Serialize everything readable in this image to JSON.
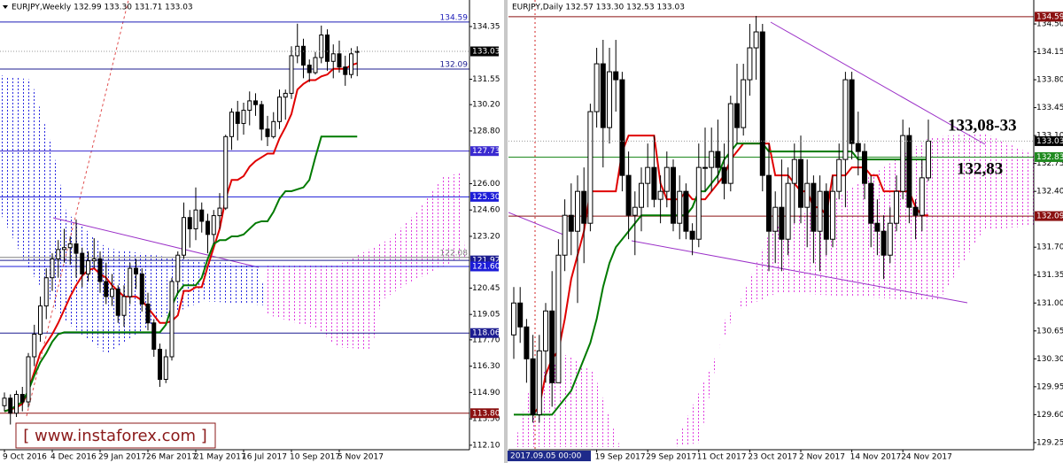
{
  "chart_data": [
    {
      "type": "candlestick",
      "title": "EURJPY,Weekly 132.99 133.30 131.71 133.03",
      "categories": [
        "9 Oct 2016",
        null,
        null,
        null,
        null,
        null,
        null,
        null,
        "4 Dec 2016",
        null,
        null,
        null,
        null,
        null,
        null,
        null,
        "29 Jan 2017",
        null,
        null,
        null,
        null,
        null,
        null,
        null,
        "26 Mar 2017",
        null,
        null,
        null,
        null,
        null,
        null,
        null,
        "21 May 2017",
        null,
        null,
        null,
        null,
        null,
        null,
        null,
        "16 Jul 2017",
        null,
        null,
        null,
        null,
        null,
        null,
        null,
        "10 Sep 2017",
        null,
        null,
        null,
        null,
        null,
        null,
        null,
        "5 Nov 2017",
        null,
        null,
        null
      ],
      "open": [
        114.2,
        114.6,
        113.8,
        114.8,
        114.4,
        116.8,
        118.0,
        119.5,
        121.0,
        122.0,
        122.5,
        122.6,
        122.8,
        122.3,
        121.2,
        121.9,
        122.0,
        120.8,
        120.0,
        120.4,
        119.0,
        120.0,
        121.5,
        121.2,
        119.6,
        118.6,
        117.2,
        115.6,
        116.8,
        120.8,
        122.2,
        124.2,
        123.6,
        124.6,
        124.0,
        123.3,
        124.3,
        124.7,
        128.5,
        129.8,
        129.2,
        129.9,
        130.4,
        130.2,
        128.9,
        128.5,
        129.3,
        130.6,
        130.8,
        132.8,
        133.3,
        132.3,
        131.9,
        132.7,
        133.9,
        132.5,
        132.9,
        132.2,
        131.8,
        132.99
      ],
      "high": [
        114.9,
        114.8,
        115.0,
        115.2,
        117.0,
        118.5,
        120.0,
        121.5,
        122.3,
        123.0,
        123.6,
        123.2,
        124.1,
        122.6,
        122.4,
        123.1,
        122.4,
        121.8,
        121.2,
        120.6,
        120.6,
        121.8,
        122.0,
        121.5,
        120.2,
        118.8,
        117.5,
        117.2,
        121.0,
        122.4,
        125.0,
        124.6,
        125.8,
        125.0,
        124.4,
        124.6,
        125.5,
        128.6,
        130.0,
        130.4,
        130.3,
        130.9,
        130.8,
        130.4,
        129.6,
        129.8,
        131.0,
        131.0,
        133.3,
        134.5,
        133.7,
        132.6,
        133.0,
        134.4,
        134.2,
        133.4,
        133.6,
        132.8,
        133.2,
        133.3
      ],
      "low": [
        113.9,
        113.2,
        113.6,
        113.9,
        114.1,
        116.3,
        117.6,
        118.8,
        120.3,
        121.0,
        121.8,
        121.7,
        121.0,
        120.5,
        120.8,
        121.5,
        120.2,
        119.6,
        119.5,
        118.6,
        118.4,
        119.6,
        120.4,
        119.2,
        118.2,
        116.8,
        115.2,
        115.4,
        116.6,
        120.2,
        122.0,
        122.6,
        123.0,
        123.4,
        122.3,
        122.8,
        123.6,
        124.6,
        127.8,
        128.3,
        128.6,
        129.1,
        129.6,
        128.3,
        128.0,
        128.4,
        128.9,
        129.4,
        130.5,
        132.4,
        131.6,
        131.4,
        131.8,
        132.4,
        132.0,
        131.6,
        131.9,
        131.2,
        131.6,
        131.71
      ],
      "close": [
        114.6,
        113.8,
        114.8,
        114.4,
        116.8,
        118.0,
        119.5,
        121.0,
        122.0,
        122.5,
        122.6,
        122.8,
        122.3,
        121.2,
        121.9,
        122.0,
        120.8,
        120.0,
        120.4,
        119.0,
        120.0,
        121.5,
        121.2,
        119.6,
        118.6,
        117.2,
        115.6,
        116.8,
        120.8,
        122.2,
        124.2,
        123.6,
        124.6,
        124.0,
        123.3,
        124.3,
        124.7,
        128.5,
        129.8,
        129.2,
        129.9,
        130.4,
        130.2,
        128.9,
        128.5,
        129.3,
        130.6,
        130.8,
        132.8,
        133.3,
        132.3,
        131.9,
        132.7,
        133.9,
        132.5,
        132.9,
        132.2,
        131.8,
        132.9,
        133.03
      ],
      "lines": [
        {
          "color": "#e00000",
          "values": [
            113.9,
            114.0,
            114.1,
            114.3,
            115.0,
            116.0,
            117.0,
            117.5,
            118.0,
            118.6,
            119.3,
            120.0,
            120.6,
            121.1,
            121.4,
            121.5,
            121.2,
            121.0,
            120.6,
            120.3,
            120.0,
            120.0,
            120.0,
            119.8,
            119.4,
            119.0,
            118.6,
            118.6,
            118.7,
            119.0,
            120.3,
            120.3,
            120.5,
            120.5,
            121.6,
            122.6,
            123.6,
            125.2,
            126.2,
            126.2,
            126.4,
            126.9,
            127.2,
            127.4,
            127.6,
            127.6,
            128.4,
            129.0,
            129.7,
            131.0,
            131.3,
            131.5,
            131.5,
            131.7,
            131.8,
            132.1,
            132.1,
            132.1,
            132.3,
            132.4
          ]
        },
        {
          "color": "#007a00",
          "values": [
            113.9,
            114.0,
            114.2,
            114.4,
            115.0,
            115.8,
            116.5,
            117.0,
            117.6,
            118.0,
            118.1,
            118.1,
            118.1,
            118.1,
            118.1,
            118.1,
            118.1,
            118.1,
            118.1,
            118.1,
            118.1,
            118.1,
            118.1,
            118.1,
            118.1,
            118.1,
            118.1,
            118.5,
            119.5,
            120.2,
            120.6,
            120.6,
            120.6,
            121.0,
            122.0,
            122.8,
            123.0,
            123.0,
            123.2,
            123.2,
            123.3,
            123.6,
            123.9,
            124.0,
            124.0,
            124.5,
            125.2,
            125.6,
            125.6,
            125.7,
            125.8,
            126.2,
            127.4,
            128.5,
            128.5,
            128.5,
            128.5,
            128.5,
            128.5,
            128.5
          ]
        }
      ],
      "levels": [
        {
          "value": 134.59,
          "color": "#1c1cb8",
          "tag": false
        },
        {
          "value": 132.09,
          "color": "#1c1c90",
          "tag": false
        },
        {
          "value": 127.73,
          "color": "#3a2ad0",
          "tag": true
        },
        {
          "value": 125.3,
          "label": "125.30",
          "color": "#1c1cd8",
          "tag": true
        },
        {
          "value": 122.08,
          "color": "#808080",
          "tag": false
        },
        {
          "value": 121.92,
          "color": "#1c1c90",
          "tag": true
        },
        {
          "value": 121.6,
          "label": "121.60",
          "color": "#1c1cd8",
          "tag": true
        },
        {
          "value": 118.06,
          "color": "#1c1c90",
          "tag": true
        },
        {
          "value": 113.8,
          "label": "113.80",
          "color": "#8b1010",
          "tag": true
        }
      ],
      "ylim": [
        111.86,
        135.76
      ],
      "yticks": [
        134.35,
        131.55,
        {
          "value": 130.2,
          "label": "130.20"
        },
        {
          "value": 128.8,
          "label": "128.80"
        },
        {
          "value": 126,
          "label": "126.00"
        },
        {
          "value": 124.6,
          "label": "124.60"
        },
        {
          "value": 123.2,
          "label": "123.20"
        },
        120.45,
        119.05,
        {
          "value": 117.7,
          "label": "117.70"
        },
        {
          "value": 116.3,
          "label": "116.30"
        },
        {
          "value": 114.9,
          "label": "114.90"
        },
        {
          "value": 113.5,
          "label": "113.50"
        },
        {
          "value": 112.1,
          "label": "112.10"
        }
      ],
      "watermark": "[ www.instaforex.com ]"
    },
    {
      "type": "candlestick",
      "title": "EURJPY,Daily 132.57 133.30 132.53 133.03",
      "categories": [
        null,
        null,
        null,
        null,
        null,
        null,
        null,
        null,
        null,
        null,
        null,
        null,
        null,
        "19 Sep 2017",
        null,
        null,
        null,
        null,
        null,
        null,
        null,
        "29 Sep 2017",
        null,
        null,
        null,
        null,
        null,
        null,
        null,
        "11 Oct 2017",
        null,
        null,
        null,
        null,
        null,
        null,
        null,
        "23 Oct 2017",
        null,
        null,
        null,
        null,
        null,
        null,
        null,
        "2 Nov 2017",
        null,
        null,
        null,
        null,
        null,
        null,
        null,
        "14 Nov 2017",
        null,
        null,
        null,
        null,
        null,
        null,
        null,
        "24 Nov 2017",
        null,
        null,
        null,
        null
      ],
      "open": [
        130.6,
        131.0,
        130.7,
        130.3,
        129.6,
        130.4,
        130.9,
        130.0,
        131.6,
        132.1,
        131.9,
        132.4,
        132.0,
        133.4,
        134.0,
        133.2,
        133.9,
        133.8,
        132.6,
        132.1,
        132.2,
        132.5,
        132.7,
        132.3,
        132.4,
        132.7,
        132.0,
        132.4,
        131.9,
        131.8,
        132.7,
        132.7,
        132.9,
        132.7,
        132.5,
        133.5,
        133.2,
        133.8,
        134.2,
        134.4,
        132.6,
        131.9,
        132.2,
        131.8,
        132.5,
        132.8,
        132.2,
        132.5,
        131.9,
        132.4,
        131.8,
        132.4,
        132.8,
        133.8,
        133.0,
        132.9,
        132.5,
        132.0,
        131.9,
        131.6,
        132.0,
        132.4,
        133.1,
        132.2,
        132.1,
        132.57
      ],
      "high": [
        131.2,
        131.2,
        130.8,
        130.6,
        130.6,
        131.0,
        131.4,
        131.8,
        132.3,
        132.5,
        132.6,
        132.7,
        133.5,
        134.2,
        134.3,
        134.2,
        134.3,
        133.9,
        132.9,
        132.4,
        132.7,
        133.0,
        133.1,
        132.6,
        132.9,
        132.8,
        132.6,
        132.5,
        132.0,
        133.0,
        133.2,
        133.2,
        133.3,
        133.0,
        133.6,
        134.0,
        134.0,
        134.5,
        134.6,
        134.5,
        133.0,
        132.4,
        132.8,
        132.7,
        133.0,
        133.1,
        132.8,
        132.6,
        132.6,
        132.5,
        132.6,
        133.0,
        133.9,
        133.9,
        133.4,
        133.0,
        132.6,
        132.3,
        132.1,
        132.2,
        132.6,
        133.3,
        133.2,
        132.3,
        132.8,
        133.3
      ],
      "low": [
        130.3,
        130.5,
        130.0,
        129.5,
        129.5,
        130.0,
        129.7,
        130.0,
        131.4,
        131.6,
        131.0,
        131.5,
        131.9,
        133.2,
        132.7,
        133.0,
        133.4,
        132.4,
        131.8,
        131.6,
        131.9,
        132.2,
        132.2,
        132.0,
        132.2,
        131.9,
        131.8,
        131.8,
        131.6,
        131.7,
        132.4,
        132.4,
        132.5,
        132.3,
        132.4,
        133.0,
        133.1,
        133.6,
        133.8,
        132.4,
        131.4,
        131.5,
        131.4,
        131.6,
        132.0,
        132.0,
        131.7,
        131.5,
        131.4,
        131.6,
        131.7,
        132.3,
        132.2,
        132.8,
        132.6,
        132.3,
        131.7,
        131.6,
        131.3,
        131.5,
        131.9,
        132.3,
        132.0,
        131.8,
        131.9,
        132.53
      ],
      "close": [
        131.0,
        130.7,
        130.3,
        129.6,
        130.4,
        130.9,
        130.0,
        131.6,
        132.1,
        131.9,
        132.4,
        132.0,
        133.4,
        134.0,
        133.2,
        133.9,
        133.8,
        132.6,
        132.1,
        132.2,
        132.5,
        132.7,
        132.3,
        132.4,
        132.7,
        132.0,
        132.4,
        131.9,
        131.8,
        132.7,
        132.7,
        132.9,
        132.7,
        132.5,
        133.5,
        133.2,
        133.8,
        134.2,
        134.4,
        132.6,
        131.9,
        132.2,
        131.8,
        132.5,
        132.8,
        132.2,
        132.5,
        131.9,
        132.4,
        131.8,
        132.4,
        132.8,
        133.8,
        133.0,
        132.9,
        132.5,
        132.0,
        131.9,
        131.6,
        132.0,
        132.4,
        133.1,
        132.2,
        132.1,
        132.57,
        133.03
      ],
      "lines": [
        {
          "color": "#e00000",
          "values": [
            null,
            null,
            null,
            129.6,
            129.7,
            130.1,
            130.3,
            130.4,
            130.8,
            131.3,
            131.6,
            131.9,
            132.4,
            132.4,
            132.4,
            132.4,
            132.4,
            132.9,
            133.1,
            133.1,
            133.1,
            133.1,
            133.1,
            132.5,
            132.3,
            132.3,
            132.3,
            132.4,
            132.3,
            132.3,
            132.3,
            132.4,
            132.5,
            132.6,
            132.8,
            132.9,
            133.0,
            133.0,
            133.0,
            133.0,
            133.0,
            132.6,
            132.6,
            132.6,
            132.5,
            132.4,
            132.4,
            132.2,
            132.2,
            132.1,
            132.6,
            132.6,
            132.6,
            132.7,
            132.7,
            132.7,
            132.6,
            132.6,
            132.4,
            132.4,
            132.4,
            132.4,
            132.4,
            132.2,
            132.1,
            132.1
          ]
        },
        {
          "color": "#007a00",
          "values": [
            129.6,
            129.6,
            129.6,
            129.6,
            129.6,
            129.6,
            129.6,
            129.7,
            129.8,
            129.9,
            130.1,
            130.3,
            130.5,
            130.8,
            131.2,
            131.5,
            131.7,
            131.8,
            131.9,
            132.0,
            132.1,
            132.1,
            132.1,
            132.1,
            132.1,
            132.1,
            132.1,
            132.1,
            132.2,
            132.4,
            132.4,
            132.5,
            132.6,
            132.8,
            132.9,
            133.0,
            133.0,
            133.0,
            133.0,
            133.0,
            132.9,
            132.9,
            132.9,
            132.9,
            132.9,
            132.9,
            132.9,
            132.9,
            132.9,
            132.9,
            132.9,
            132.9,
            132.9,
            132.9,
            132.8,
            132.8,
            132.8,
            132.8,
            132.8,
            132.8,
            132.8,
            132.8,
            132.8,
            132.8,
            132.8,
            132.8
          ]
        }
      ],
      "levels": [
        {
          "value": 134.59,
          "color": "#8b1010",
          "tag": true
        },
        {
          "value": 132.83,
          "color": "#1f8a1f",
          "tag": true
        },
        {
          "value": 132.09,
          "color": "#8b1010",
          "tag": true
        }
      ],
      "ylim": [
        129.16,
        134.8
      ],
      "yticks": [
        {
          "value": 134.5,
          "label": "134.50"
        },
        134.15,
        {
          "value": 133.8,
          "label": "133.80"
        },
        133.45,
        {
          "value": 133.1,
          "label": "133.10"
        },
        132.75,
        {
          "value": 132.4,
          "label": "132.40"
        },
        {
          "value": 131.7,
          "label": "131.70"
        },
        131.35,
        {
          "value": 131,
          "label": "131.00"
        },
        130.65,
        {
          "value": 130.3,
          "label": "130.30"
        },
        129.95,
        {
          "value": 129.6,
          "label": "129.60"
        },
        129.25
      ],
      "crosshair_label": "2017.09.05 00:00",
      "annotations": [
        "133,08-33",
        "132,83"
      ]
    }
  ]
}
